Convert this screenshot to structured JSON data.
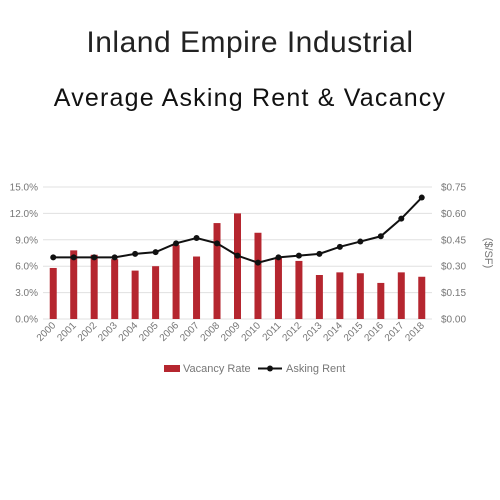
{
  "title": "Inland Empire Industrial",
  "subtitle": "Average Asking Rent & Vacancy",
  "colors": {
    "bar": "#b5262f",
    "line": "#111111",
    "grid": "#e0e0e0",
    "axis_text": "#777777"
  },
  "chart_data": {
    "type": "bar",
    "categories": [
      "2000",
      "2001",
      "2002",
      "2003",
      "2004",
      "2005",
      "2006",
      "2007",
      "2008",
      "2009",
      "2010",
      "2011",
      "2012",
      "2013",
      "2014",
      "2015",
      "2016",
      "2017",
      "2018"
    ],
    "series": [
      {
        "name": "Vacancy Rate",
        "type": "bar",
        "axis": "left",
        "values": [
          5.8,
          7.8,
          7.3,
          6.8,
          5.5,
          6.0,
          8.4,
          7.1,
          10.9,
          12.0,
          9.8,
          7.0,
          6.6,
          5.0,
          5.3,
          5.2,
          4.1,
          5.3,
          4.8
        ]
      },
      {
        "name": "Asking Rent",
        "type": "line",
        "axis": "right",
        "values": [
          0.35,
          0.35,
          0.35,
          0.35,
          0.37,
          0.38,
          0.43,
          0.46,
          0.43,
          0.36,
          0.32,
          0.35,
          0.36,
          0.37,
          0.41,
          0.44,
          0.47,
          0.57,
          0.69
        ]
      }
    ],
    "y_left": {
      "ylim": [
        0,
        15
      ],
      "ticks": [
        "0.0%",
        "3.0%",
        "6.0%",
        "9.0%",
        "12.0%",
        "15.0%"
      ]
    },
    "y_right": {
      "ylim": [
        0,
        0.75
      ],
      "label": "($/SF)",
      "ticks": [
        "$0.00",
        "$0.15",
        "$0.30",
        "$0.45",
        "$0.60",
        "$0.75"
      ]
    },
    "xlabel": "",
    "grid": true,
    "legend": "bottom"
  }
}
